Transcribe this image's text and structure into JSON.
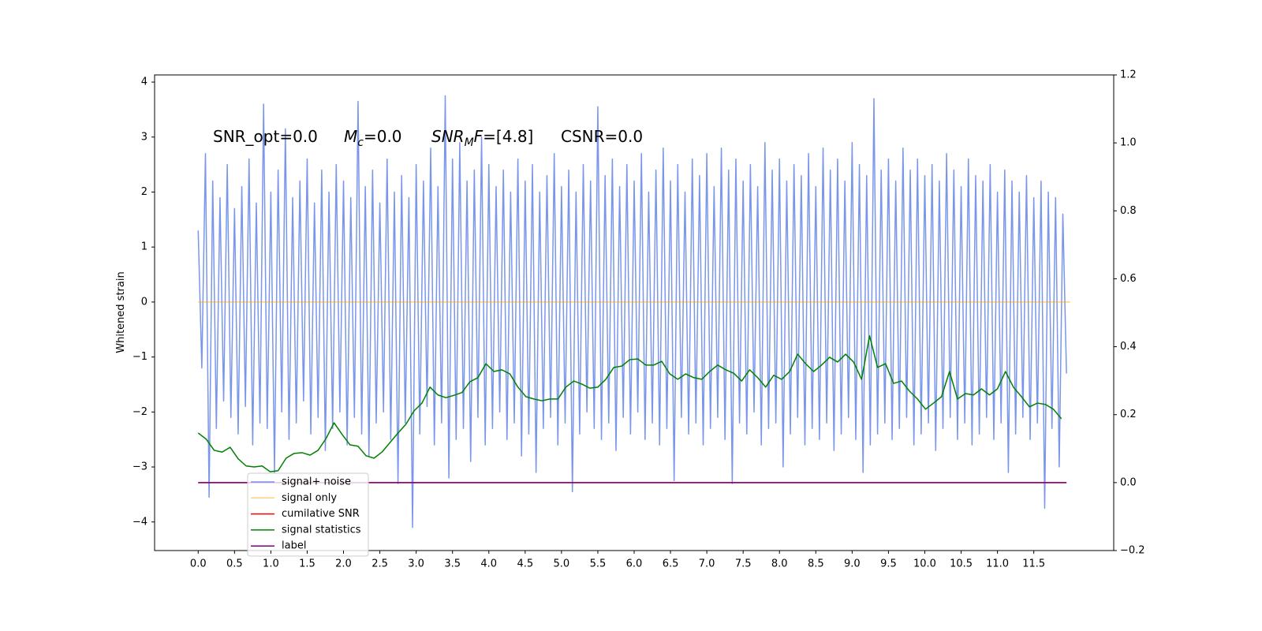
{
  "chart_data": {
    "type": "line",
    "ylabel": "Whitened strain",
    "annotations": [
      "SNR_opt=0.0",
      [
        "M",
        "c",
        "=0.0"
      ],
      [
        "SNR",
        "M",
        "F",
        "=[4.8]"
      ],
      "CSNR=0.0"
    ],
    "xlim": [
      -0.6,
      12.6
    ],
    "ylim": [
      -4.52,
      4.13
    ],
    "y2lim": [
      -0.2,
      1.2
    ],
    "xticks": [
      {
        "value": 0,
        "label": "0.0"
      },
      {
        "value": 0.5,
        "label": "0.5"
      },
      {
        "value": 1,
        "label": "1.0"
      },
      {
        "value": 1.5,
        "label": "1.5"
      },
      {
        "value": 2,
        "label": "2.0"
      },
      {
        "value": 2.5,
        "label": "2.5"
      },
      {
        "value": 3,
        "label": "3.0"
      },
      {
        "value": 3.5,
        "label": "3.5"
      },
      {
        "value": 4,
        "label": "4.0"
      },
      {
        "value": 4.5,
        "label": "4.5"
      },
      {
        "value": 5,
        "label": "5.0"
      },
      {
        "value": 5.5,
        "label": "5.5"
      },
      {
        "value": 6,
        "label": "6.0"
      },
      {
        "value": 6.5,
        "label": "6.5"
      },
      {
        "value": 7,
        "label": "7.0"
      },
      {
        "value": 7.5,
        "label": "7.5"
      },
      {
        "value": 8,
        "label": "8.0"
      },
      {
        "value": 8.5,
        "label": "8.5"
      },
      {
        "value": 9,
        "label": "9.0"
      },
      {
        "value": 9.5,
        "label": "9.5"
      },
      {
        "value": 10,
        "label": "10.0"
      },
      {
        "value": 10.5,
        "label": "10.5"
      },
      {
        "value": 11,
        "label": "11.0"
      },
      {
        "value": 11.5,
        "label": "11.5"
      }
    ],
    "yticks": [
      {
        "value": -4,
        "label": "−4"
      },
      {
        "value": -3,
        "label": "−3"
      },
      {
        "value": -2,
        "label": "−2"
      },
      {
        "value": -1,
        "label": "−1"
      },
      0,
      1,
      2,
      3,
      4
    ],
    "y2ticks": [
      {
        "value": -0.2,
        "label": "−0.2"
      },
      {
        "value": 0,
        "label": "0.0"
      },
      {
        "value": 0.2,
        "label": "0.2"
      },
      {
        "value": 0.4,
        "label": "0.4"
      },
      {
        "value": 0.6,
        "label": "0.6"
      },
      {
        "value": 0.8,
        "label": "0.8"
      },
      {
        "value": 1,
        "label": "1.0"
      },
      {
        "value": 1.2,
        "label": "1.2"
      }
    ],
    "grid": false,
    "series": [
      {
        "name": "signal+ noise",
        "color": "#4169e1",
        "alpha": 0.7,
        "x": [
          0,
          0.05,
          0.1,
          0.15,
          0.2,
          0.25,
          0.3,
          0.35,
          0.4,
          0.45,
          0.5,
          0.55,
          0.6,
          0.65,
          0.7,
          0.75,
          0.8,
          0.85,
          0.9,
          0.95,
          1,
          1.05,
          1.1,
          1.15,
          1.2,
          1.25,
          1.3,
          1.35,
          1.4,
          1.45,
          1.5,
          1.55,
          1.6,
          1.65,
          1.7,
          1.75,
          1.8,
          1.85,
          1.9,
          1.95,
          2,
          2.05,
          2.1,
          2.15,
          2.2,
          2.25,
          2.3,
          2.35,
          2.4,
          2.45,
          2.5,
          2.55,
          2.6,
          2.65,
          2.7,
          2.75,
          2.8,
          2.85,
          2.9,
          2.95,
          3,
          3.05,
          3.1,
          3.15,
          3.2,
          3.25,
          3.3,
          3.35,
          3.4,
          3.45,
          3.5,
          3.55,
          3.6,
          3.65,
          3.7,
          3.75,
          3.8,
          3.85,
          3.9,
          3.95,
          4,
          4.05,
          4.1,
          4.15,
          4.2,
          4.25,
          4.3,
          4.35,
          4.4,
          4.45,
          4.5,
          4.55,
          4.6,
          4.65,
          4.7,
          4.75,
          4.8,
          4.85,
          4.9,
          4.95,
          5,
          5.05,
          5.1,
          5.15,
          5.2,
          5.25,
          5.3,
          5.35,
          5.4,
          5.45,
          5.5,
          5.55,
          5.6,
          5.65,
          5.7,
          5.75,
          5.8,
          5.85,
          5.9,
          5.95,
          6,
          6.05,
          6.1,
          6.15,
          6.2,
          6.25,
          6.3,
          6.35,
          6.4,
          6.45,
          6.5,
          6.55,
          6.6,
          6.65,
          6.7,
          6.75,
          6.8,
          6.85,
          6.9,
          6.95,
          7,
          7.05,
          7.1,
          7.15,
          7.2,
          7.25,
          7.3,
          7.35,
          7.4,
          7.45,
          7.5,
          7.55,
          7.6,
          7.65,
          7.7,
          7.75,
          7.8,
          7.85,
          7.9,
          7.95,
          8,
          8.05,
          8.1,
          8.15,
          8.2,
          8.25,
          8.3,
          8.35,
          8.4,
          8.45,
          8.5,
          8.55,
          8.6,
          8.65,
          8.7,
          8.75,
          8.8,
          8.85,
          8.9,
          8.95,
          9,
          9.05,
          9.1,
          9.15,
          9.2,
          9.25,
          9.3,
          9.35,
          9.4,
          9.45,
          9.5,
          9.55,
          9.6,
          9.65,
          9.7,
          9.75,
          9.8,
          9.85,
          9.9,
          9.95,
          10,
          10.05,
          10.1,
          10.15,
          10.2,
          10.25,
          10.3,
          10.35,
          10.4,
          10.45,
          10.5,
          10.55,
          10.6,
          10.65,
          10.7,
          10.75,
          10.8,
          10.85,
          10.9,
          10.95,
          11,
          11.05,
          11.1,
          11.15,
          11.2,
          11.25,
          11.3,
          11.35,
          11.4,
          11.45,
          11.5,
          11.55,
          11.6,
          11.65,
          11.7,
          11.75,
          11.8,
          11.85,
          11.9,
          11.95
        ],
        "values": [
          1.3,
          -1.2,
          2.7,
          -3.55,
          2.2,
          -2.3,
          1.9,
          -1.8,
          2.5,
          -2.1,
          1.7,
          -2.4,
          2.1,
          -1.9,
          2.6,
          -2.6,
          1.8,
          -2.2,
          3.6,
          -2.3,
          2.0,
          -3.1,
          2.4,
          -2.0,
          3.15,
          -2.5,
          1.9,
          -2.2,
          2.2,
          -1.8,
          2.6,
          -2.4,
          1.8,
          -2.1,
          2.4,
          -2.7,
          2.0,
          -2.3,
          2.5,
          -2.0,
          2.2,
          -2.6,
          1.9,
          -2.1,
          3.65,
          -2.4,
          2.1,
          -2.8,
          2.4,
          -2.2,
          1.8,
          -2.0,
          2.6,
          -2.5,
          2.0,
          -3.3,
          2.3,
          -2.2,
          1.9,
          -4.1,
          2.5,
          -2.4,
          2.2,
          -1.9,
          2.8,
          -2.6,
          2.1,
          -2.2,
          3.75,
          -3.2,
          2.6,
          -2.5,
          2.9,
          -2.3,
          2.2,
          -2.9,
          2.4,
          -2.1,
          3.0,
          -2.6,
          2.5,
          -2.3,
          2.1,
          -2.0,
          2.4,
          -2.5,
          2.0,
          -2.2,
          2.6,
          -2.8,
          2.2,
          -2.4,
          2.5,
          -3.1,
          2.0,
          -2.3,
          2.3,
          -2.1,
          2.7,
          -2.6,
          2.1,
          -2.2,
          2.4,
          -3.45,
          2.0,
          -2.4,
          2.5,
          -2.0,
          2.2,
          -2.3,
          3.55,
          -2.5,
          2.3,
          -2.2,
          2.6,
          -2.7,
          2.1,
          -2.1,
          2.5,
          -2.4,
          2.2,
          -2.0,
          2.7,
          -2.5,
          2.0,
          -2.2,
          2.4,
          -2.6,
          2.8,
          -2.3,
          2.2,
          -3.25,
          2.5,
          -2.1,
          2.0,
          -2.4,
          2.6,
          -2.2,
          2.3,
          -2.6,
          2.7,
          -2.3,
          2.1,
          -2.1,
          2.8,
          -2.5,
          2.4,
          -3.3,
          2.6,
          -2.2,
          2.2,
          -2.4,
          2.5,
          -2.0,
          2.1,
          -2.6,
          2.9,
          -2.3,
          2.4,
          -2.2,
          2.6,
          -3.0,
          2.2,
          -2.4,
          2.5,
          -2.1,
          2.3,
          -2.6,
          2.7,
          -2.3,
          2.1,
          -2.5,
          2.8,
          -2.2,
          2.4,
          -2.7,
          2.6,
          -2.4,
          2.2,
          -2.1,
          2.9,
          -2.5,
          2.5,
          -3.1,
          2.3,
          -2.6,
          3.7,
          -2.4,
          2.4,
          -2.2,
          2.6,
          -2.5,
          2.2,
          -2.3,
          2.8,
          -2.1,
          2.4,
          -2.6,
          2.6,
          -2.4,
          2.3,
          -2.2,
          2.5,
          -2.7,
          2.2,
          -2.3,
          2.7,
          -2.1,
          2.4,
          -2.5,
          2.1,
          -2.2,
          2.6,
          -2.6,
          2.3,
          -2.4,
          2.2,
          -2.1,
          2.5,
          -2.5,
          2.0,
          -2.2,
          2.4,
          -3.1,
          2.2,
          -2.4,
          2.0,
          -2.1,
          2.3,
          -2.5,
          1.9,
          -2.2,
          2.2,
          -3.75,
          2.0,
          -2.3,
          1.9,
          -3.0,
          1.6,
          -1.3
        ]
      },
      {
        "name": "signal only",
        "color": "#ffa500",
        "alpha": 0.5,
        "x": [
          0,
          12.0
        ],
        "values": [
          0,
          0
        ]
      },
      {
        "name": "cumilative SNR",
        "color": "#ff0000",
        "axis": "y2",
        "x": [
          0,
          11.95
        ],
        "values": [
          0,
          0
        ]
      },
      {
        "name": "signal statistics",
        "color": "#008000",
        "axis": "y2",
        "x": [
          0,
          0.11,
          0.22,
          0.33,
          0.44,
          0.55,
          0.66,
          0.77,
          0.88,
          0.99,
          1.1,
          1.21,
          1.32,
          1.43,
          1.54,
          1.65,
          1.76,
          1.87,
          1.98,
          2.09,
          2.2,
          2.31,
          2.42,
          2.53,
          2.64,
          2.75,
          2.86,
          2.97,
          3.08,
          3.19,
          3.3,
          3.41,
          3.52,
          3.63,
          3.74,
          3.85,
          3.96,
          4.07,
          4.18,
          4.29,
          4.4,
          4.51,
          4.62,
          4.73,
          4.84,
          4.95,
          5.06,
          5.17,
          5.28,
          5.39,
          5.5,
          5.61,
          5.72,
          5.83,
          5.94,
          6.05,
          6.16,
          6.27,
          6.38,
          6.49,
          6.6,
          6.71,
          6.82,
          6.93,
          7.04,
          7.15,
          7.26,
          7.37,
          7.48,
          7.59,
          7.7,
          7.81,
          7.92,
          8.03,
          8.14,
          8.25,
          8.36,
          8.47,
          8.58,
          8.69,
          8.8,
          8.91,
          9.02,
          9.13,
          9.24,
          9.35,
          9.46,
          9.57,
          9.68,
          9.79,
          9.9,
          10.01,
          10.12,
          10.23,
          10.34,
          10.45,
          10.56,
          10.67,
          10.78,
          10.89,
          11.0,
          11.11,
          11.22,
          11.33,
          11.44,
          11.55,
          11.66,
          11.77,
          11.88
        ],
        "values": [
          0.146,
          0.128,
          0.095,
          0.09,
          0.104,
          0.07,
          0.049,
          0.046,
          0.049,
          0.032,
          0.035,
          0.072,
          0.086,
          0.088,
          0.081,
          0.095,
          0.13,
          0.176,
          0.142,
          0.111,
          0.107,
          0.079,
          0.072,
          0.09,
          0.118,
          0.146,
          0.172,
          0.211,
          0.234,
          0.281,
          0.258,
          0.25,
          0.257,
          0.265,
          0.297,
          0.309,
          0.35,
          0.327,
          0.332,
          0.32,
          0.281,
          0.253,
          0.246,
          0.241,
          0.246,
          0.246,
          0.281,
          0.299,
          0.29,
          0.278,
          0.281,
          0.304,
          0.339,
          0.343,
          0.362,
          0.364,
          0.346,
          0.346,
          0.357,
          0.32,
          0.304,
          0.32,
          0.309,
          0.304,
          0.327,
          0.346,
          0.332,
          0.322,
          0.299,
          0.332,
          0.309,
          0.281,
          0.316,
          0.304,
          0.327,
          0.378,
          0.35,
          0.327,
          0.346,
          0.369,
          0.355,
          0.378,
          0.355,
          0.304,
          0.432,
          0.339,
          0.35,
          0.292,
          0.299,
          0.269,
          0.246,
          0.216,
          0.234,
          0.253,
          0.327,
          0.246,
          0.262,
          0.258,
          0.276,
          0.258,
          0.276,
          0.327,
          0.281,
          0.253,
          0.223,
          0.234,
          0.23,
          0.216,
          0.188
        ]
      },
      {
        "name": "label",
        "color": "#800080",
        "axis": "y2",
        "x": [
          0,
          11.95
        ],
        "values": [
          0,
          0
        ]
      }
    ]
  }
}
